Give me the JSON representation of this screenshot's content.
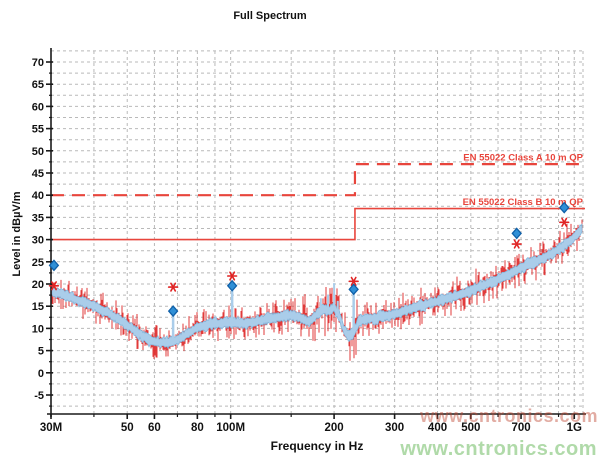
{
  "title": "Full Spectrum",
  "watermarks": {
    "green": "www.cntronics.com",
    "red": "www.cntronics.com"
  },
  "chart_data": {
    "type": "area",
    "title": "Full Spectrum",
    "xlabel": "Frequency in Hz",
    "ylabel": "Level in dBµV/m",
    "x_scale": "log",
    "x_range_mhz": [
      30,
      1059
    ],
    "y_range_db": [
      -9.3,
      72.5
    ],
    "grid": true,
    "y_major_ticks_db": [
      70,
      65,
      60,
      55,
      50,
      45,
      40,
      35,
      30,
      25,
      20,
      15,
      10,
      5,
      0,
      -5
    ],
    "y_minor_step_db": 2.5,
    "x_major_ticks_mhz": [
      30,
      50,
      60,
      80,
      100,
      200,
      300,
      400,
      500,
      700,
      1000
    ],
    "x_major_tick_labels": [
      "30M",
      "50",
      "60",
      "80",
      "100M",
      "200",
      "300",
      "400",
      "500",
      "700",
      "1G"
    ],
    "x_minor_ticks_mhz": [
      40,
      70,
      90,
      150,
      600,
      800,
      900
    ],
    "grid_vertical_mhz": [
      40,
      50,
      60,
      70,
      80,
      90,
      100,
      150,
      200,
      300,
      400,
      500,
      600,
      700,
      800,
      900,
      1000
    ],
    "limits": [
      {
        "name": "EN 55022 Class A 10 m QP",
        "style": "dashed",
        "level_low_db": 40,
        "level_high_db": 47,
        "step_mhz": 230
      },
      {
        "name": "EN 55022 Class B 10 m QP",
        "style": "solid",
        "level_low_db": 30,
        "level_high_db": 37,
        "step_mhz": 230
      }
    ],
    "trace_envelope_mhz_db": [
      [
        30,
        18.6
      ],
      [
        33,
        17.6
      ],
      [
        36,
        16.4
      ],
      [
        40,
        15.2
      ],
      [
        44,
        13.6
      ],
      [
        48,
        11.8
      ],
      [
        52,
        9.9
      ],
      [
        55,
        8.6
      ],
      [
        58,
        7.4
      ],
      [
        62,
        6.9
      ],
      [
        66,
        7.0
      ],
      [
        70,
        7.5
      ],
      [
        75,
        8.9
      ],
      [
        80,
        10.3
      ],
      [
        85,
        10.9
      ],
      [
        90,
        11.1
      ],
      [
        95,
        11.3
      ],
      [
        100,
        11.5
      ],
      [
        108,
        11.2
      ],
      [
        118,
        11.6
      ],
      [
        128,
        12.2
      ],
      [
        140,
        12.8
      ],
      [
        152,
        13.1
      ],
      [
        160,
        12.4
      ],
      [
        168,
        11.6
      ],
      [
        176,
        12.8
      ],
      [
        185,
        14.6
      ],
      [
        193,
        14.0
      ],
      [
        200,
        14.8
      ],
      [
        207,
        12.8
      ],
      [
        214,
        9.6
      ],
      [
        221,
        8.4
      ],
      [
        228,
        9.0
      ],
      [
        236,
        11.8
      ],
      [
        248,
        12.1
      ],
      [
        262,
        12.4
      ],
      [
        278,
        12.8
      ],
      [
        300,
        13.3
      ],
      [
        330,
        14.4
      ],
      [
        360,
        15.2
      ],
      [
        400,
        16.2
      ],
      [
        440,
        17.2
      ],
      [
        480,
        18.1
      ],
      [
        520,
        19.2
      ],
      [
        560,
        20.2
      ],
      [
        600,
        21.2
      ],
      [
        650,
        22.5
      ],
      [
        700,
        23.7
      ],
      [
        750,
        24.7
      ],
      [
        800,
        25.7
      ],
      [
        850,
        26.8
      ],
      [
        900,
        27.9
      ],
      [
        950,
        29.2
      ],
      [
        1000,
        30.8
      ],
      [
        1059,
        32.8
      ]
    ],
    "noise_region_mhz": [
      160,
      235
    ],
    "blue_spikes_mhz_db": [
      [
        183,
        16.8
      ],
      [
        192,
        17.6
      ],
      [
        200,
        20.2
      ],
      [
        205,
        16.2
      ]
    ],
    "markers": {
      "diamonds_mhz_db": [
        [
          30.6,
          24.2
        ],
        [
          68,
          13.9
        ],
        [
          101,
          19.6
        ],
        [
          228,
          18.8
        ],
        [
          680,
          31.4
        ],
        [
          935,
          37.2
        ]
      ],
      "asterisks_mhz_db": [
        [
          30.6,
          19.6
        ],
        [
          68,
          19.3
        ],
        [
          101,
          21.8
        ],
        [
          228,
          20.6
        ],
        [
          680,
          29.0
        ],
        [
          935,
          33.9
        ]
      ],
      "stems_mhz_top_bottom_db": [
        [
          68,
          13.9,
          7.2
        ],
        [
          101,
          19.6,
          11.3
        ],
        [
          228,
          18.8,
          8.6
        ]
      ]
    },
    "colors": {
      "band_fill": "#aacdea",
      "band_edge": "#7fb2d8",
      "noise": "#e03030",
      "limit": "#e8453c",
      "grid": "#b9b9b9",
      "axis": "#1a1a1a",
      "tick_label": "#111111",
      "diamond_fill": "#2f8fd6",
      "diamond_edge": "#1060a8",
      "asterisk": "#e02424"
    }
  }
}
